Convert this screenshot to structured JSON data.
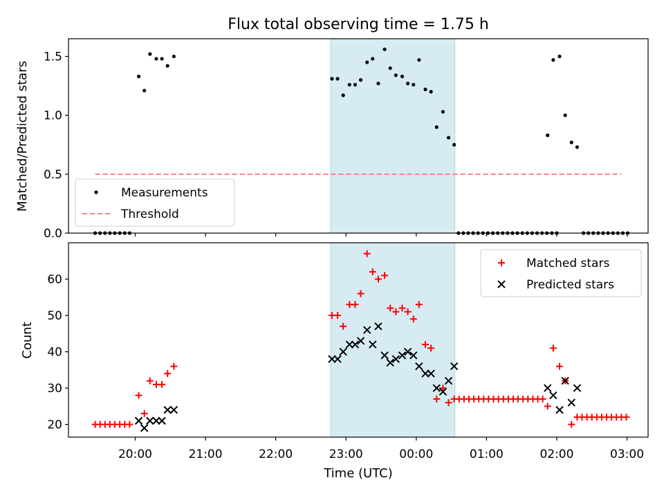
{
  "chart_data": [
    {
      "type": "scatter",
      "title": "Flux total observing time = 1.75 h",
      "ylabel": "Matched/Predicted stars",
      "xlabel": "",
      "ylim": [
        0,
        1.65
      ],
      "yticks": [
        0.0,
        0.5,
        1.0,
        1.5
      ],
      "ytick_labels": [
        "0.0",
        "0.5",
        "1.0",
        "1.5"
      ],
      "x_units": "hours since 00:00 UTC",
      "xlim": [
        -4.95,
        3.3
      ],
      "highlight_span": [
        -1.22,
        0.55
      ],
      "legend": {
        "position": "lower-left",
        "entries": [
          {
            "label": "Measurements",
            "marker": "dot",
            "color": "#000000"
          },
          {
            "label": "Threshold",
            "marker": "dashed-line",
            "color": "#ff7f7f"
          }
        ]
      },
      "threshold": {
        "value": 0.5,
        "x_range": [
          -4.57,
          2.92
        ],
        "color": "#ff7f7f"
      },
      "series": [
        {
          "name": "Measurements",
          "color": "#000000",
          "points": [
            [
              -4.57,
              0
            ],
            [
              -4.5,
              0
            ],
            [
              -4.43,
              0
            ],
            [
              -4.36,
              0
            ],
            [
              -4.29,
              0
            ],
            [
              -4.22,
              0
            ],
            [
              -4.15,
              0
            ],
            [
              -4.08,
              0
            ],
            [
              0.6,
              0
            ],
            [
              0.67,
              0
            ],
            [
              0.74,
              0
            ],
            [
              0.81,
              0
            ],
            [
              0.88,
              0
            ],
            [
              0.95,
              0
            ],
            [
              1.02,
              0
            ],
            [
              1.09,
              0
            ],
            [
              1.16,
              0
            ],
            [
              1.23,
              0
            ],
            [
              1.3,
              0
            ],
            [
              1.37,
              0
            ],
            [
              1.44,
              0
            ],
            [
              1.51,
              0
            ],
            [
              1.58,
              0
            ],
            [
              1.65,
              0
            ],
            [
              1.72,
              0
            ],
            [
              1.79,
              0
            ],
            [
              1.86,
              0
            ],
            [
              1.93,
              0
            ],
            [
              2.0,
              0
            ],
            [
              2.38,
              0
            ],
            [
              2.45,
              0
            ],
            [
              2.52,
              0
            ],
            [
              2.59,
              0
            ],
            [
              2.66,
              0
            ],
            [
              2.73,
              0
            ],
            [
              2.8,
              0
            ],
            [
              2.87,
              0
            ],
            [
              2.94,
              0
            ],
            [
              3.01,
              0
            ],
            [
              -3.95,
              1.33
            ],
            [
              -3.87,
              1.21
            ],
            [
              -3.79,
              1.52
            ],
            [
              -3.7,
              1.48
            ],
            [
              -3.62,
              1.48
            ],
            [
              -3.54,
              1.42
            ],
            [
              -3.45,
              1.5
            ],
            [
              -1.2,
              1.31
            ],
            [
              -1.12,
              1.31
            ],
            [
              -1.04,
              1.17
            ],
            [
              -0.95,
              1.26
            ],
            [
              -0.87,
              1.26
            ],
            [
              -0.79,
              1.3
            ],
            [
              -0.7,
              1.45
            ],
            [
              -0.62,
              1.48
            ],
            [
              -0.54,
              1.27
            ],
            [
              -0.45,
              1.56
            ],
            [
              -0.37,
              1.4
            ],
            [
              -0.29,
              1.34
            ],
            [
              -0.2,
              1.33
            ],
            [
              -0.12,
              1.27
            ],
            [
              -0.04,
              1.26
            ],
            [
              0.04,
              1.47
            ],
            [
              0.13,
              1.22
            ],
            [
              0.21,
              1.2
            ],
            [
              0.29,
              0.9
            ],
            [
              0.38,
              1.03
            ],
            [
              0.46,
              0.81
            ],
            [
              0.54,
              0.75
            ],
            [
              1.87,
              0.83
            ],
            [
              1.95,
              1.47
            ],
            [
              2.04,
              1.5
            ],
            [
              2.12,
              1.0
            ],
            [
              2.21,
              0.77
            ],
            [
              2.29,
              0.73
            ]
          ]
        }
      ]
    },
    {
      "type": "scatter",
      "title": "",
      "ylabel": "Count",
      "xlabel": "Time (UTC)",
      "ylim": [
        16.5,
        70
      ],
      "yticks": [
        20,
        30,
        40,
        50,
        60
      ],
      "ytick_labels": [
        "20",
        "30",
        "40",
        "50",
        "60"
      ],
      "x_units": "hours since 00:00 UTC",
      "xlim": [
        -4.95,
        3.3
      ],
      "xticks": [
        -4,
        -3,
        -2,
        -1,
        0,
        1,
        2,
        3
      ],
      "xtick_labels": [
        "20:00",
        "21:00",
        "22:00",
        "23:00",
        "00:00",
        "01:00",
        "02:00",
        "03:00"
      ],
      "highlight_span": [
        -1.22,
        0.55
      ],
      "legend": {
        "position": "upper-right",
        "entries": [
          {
            "label": "Matched stars",
            "marker": "plus",
            "color": "#ff0000"
          },
          {
            "label": "Predicted stars",
            "marker": "x",
            "color": "#000000"
          }
        ]
      },
      "series": [
        {
          "name": "Matched stars",
          "color": "#ff0000",
          "marker": "plus",
          "points": [
            [
              -4.57,
              20
            ],
            [
              -4.5,
              20
            ],
            [
              -4.43,
              20
            ],
            [
              -4.36,
              20
            ],
            [
              -4.29,
              20
            ],
            [
              -4.22,
              20
            ],
            [
              -4.15,
              20
            ],
            [
              -4.08,
              20
            ],
            [
              -3.95,
              28
            ],
            [
              -3.87,
              23
            ],
            [
              -3.79,
              32
            ],
            [
              -3.7,
              31
            ],
            [
              -3.62,
              31
            ],
            [
              -3.54,
              34
            ],
            [
              -3.45,
              36
            ],
            [
              -1.2,
              50
            ],
            [
              -1.12,
              50
            ],
            [
              -1.04,
              47
            ],
            [
              -0.95,
              53
            ],
            [
              -0.87,
              53
            ],
            [
              -0.79,
              56
            ],
            [
              -0.7,
              67
            ],
            [
              -0.62,
              62
            ],
            [
              -0.54,
              60
            ],
            [
              -0.45,
              61
            ],
            [
              -0.37,
              52
            ],
            [
              -0.29,
              51
            ],
            [
              -0.2,
              52
            ],
            [
              -0.12,
              51
            ],
            [
              -0.04,
              49
            ],
            [
              0.04,
              53
            ],
            [
              0.13,
              42
            ],
            [
              0.21,
              41
            ],
            [
              0.29,
              27
            ],
            [
              0.38,
              30
            ],
            [
              0.46,
              26
            ],
            [
              0.54,
              27
            ],
            [
              0.61,
              27
            ],
            [
              0.68,
              27
            ],
            [
              0.75,
              27
            ],
            [
              0.82,
              27
            ],
            [
              0.89,
              27
            ],
            [
              0.96,
              27
            ],
            [
              1.03,
              27
            ],
            [
              1.1,
              27
            ],
            [
              1.17,
              27
            ],
            [
              1.24,
              27
            ],
            [
              1.31,
              27
            ],
            [
              1.38,
              27
            ],
            [
              1.45,
              27
            ],
            [
              1.52,
              27
            ],
            [
              1.59,
              27
            ],
            [
              1.66,
              27
            ],
            [
              1.73,
              27
            ],
            [
              1.8,
              27
            ],
            [
              1.87,
              25
            ],
            [
              1.95,
              41
            ],
            [
              2.04,
              36
            ],
            [
              2.12,
              32
            ],
            [
              2.21,
              20
            ],
            [
              2.29,
              22
            ],
            [
              2.36,
              22
            ],
            [
              2.43,
              22
            ],
            [
              2.5,
              22
            ],
            [
              2.57,
              22
            ],
            [
              2.64,
              22
            ],
            [
              2.71,
              22
            ],
            [
              2.78,
              22
            ],
            [
              2.85,
              22
            ],
            [
              2.92,
              22
            ],
            [
              2.99,
              22
            ]
          ]
        },
        {
          "name": "Predicted stars",
          "color": "#000000",
          "marker": "x",
          "points": [
            [
              -3.95,
              21
            ],
            [
              -3.87,
              19
            ],
            [
              -3.79,
              21
            ],
            [
              -3.7,
              21
            ],
            [
              -3.62,
              21
            ],
            [
              -3.54,
              24
            ],
            [
              -3.45,
              24
            ],
            [
              -1.2,
              38
            ],
            [
              -1.12,
              38
            ],
            [
              -1.04,
              40
            ],
            [
              -0.95,
              42
            ],
            [
              -0.87,
              42
            ],
            [
              -0.79,
              43
            ],
            [
              -0.7,
              46
            ],
            [
              -0.62,
              42
            ],
            [
              -0.54,
              47
            ],
            [
              -0.45,
              39
            ],
            [
              -0.37,
              37
            ],
            [
              -0.29,
              38
            ],
            [
              -0.2,
              39
            ],
            [
              -0.12,
              40
            ],
            [
              -0.04,
              39
            ],
            [
              0.04,
              36
            ],
            [
              0.13,
              34
            ],
            [
              0.21,
              34
            ],
            [
              0.29,
              30
            ],
            [
              0.38,
              29
            ],
            [
              0.46,
              32
            ],
            [
              0.54,
              36
            ],
            [
              1.87,
              30
            ],
            [
              1.95,
              28
            ],
            [
              2.04,
              24
            ],
            [
              2.12,
              32
            ],
            [
              2.21,
              26
            ],
            [
              2.29,
              30
            ]
          ]
        }
      ]
    }
  ]
}
